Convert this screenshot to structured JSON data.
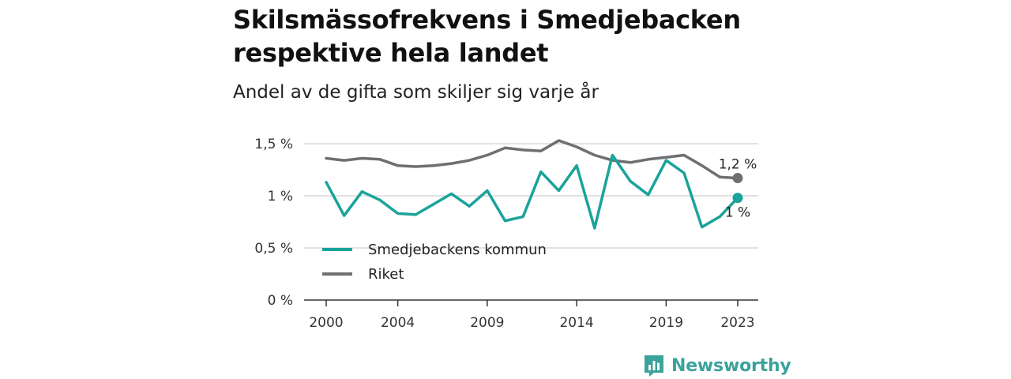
{
  "header": {
    "title": "Skilsmässofrekvens i Smedjebacken respektive hela landet",
    "subtitle": "Andel av de gifta som skiljer sig varje år"
  },
  "brand": {
    "name": "Newsworthy",
    "icon": "newsworthy-logo-icon",
    "color": "#3aa39b"
  },
  "chart_data": {
    "type": "line",
    "x": [
      2000,
      2001,
      2002,
      2003,
      2004,
      2005,
      2006,
      2007,
      2008,
      2009,
      2010,
      2011,
      2012,
      2013,
      2014,
      2015,
      2016,
      2017,
      2018,
      2019,
      2020,
      2021,
      2022,
      2023
    ],
    "series": [
      {
        "name": "Smedjebackens kommun",
        "color": "#1aa39a",
        "values": [
          1.13,
          0.81,
          1.04,
          0.96,
          0.83,
          0.82,
          0.92,
          1.02,
          0.9,
          1.05,
          0.76,
          0.8,
          1.23,
          1.05,
          1.29,
          0.69,
          1.39,
          1.14,
          1.01,
          1.34,
          1.22,
          0.7,
          0.8,
          0.98
        ],
        "end_label": "1 %"
      },
      {
        "name": "Riket",
        "color": "#6e6e73",
        "values": [
          1.36,
          1.34,
          1.36,
          1.35,
          1.29,
          1.28,
          1.29,
          1.31,
          1.34,
          1.39,
          1.46,
          1.44,
          1.43,
          1.53,
          1.47,
          1.39,
          1.34,
          1.32,
          1.35,
          1.37,
          1.39,
          1.29,
          1.18,
          1.17
        ],
        "end_label": "1,2 %"
      }
    ],
    "xticks": [
      2000,
      2004,
      2009,
      2014,
      2019,
      2023
    ],
    "xtick_labels": [
      "2000",
      "2004",
      "2009",
      "2014",
      "2019",
      "2023"
    ],
    "yticks": [
      0,
      0.5,
      1,
      1.5
    ],
    "ytick_labels": [
      "0 %",
      "0,5 %",
      "1 %",
      "1,5 %"
    ],
    "xlim": [
      2000,
      2023
    ],
    "ylim": [
      0,
      1.5
    ],
    "grid": "horizontal",
    "legend_position": "bottom-left"
  }
}
